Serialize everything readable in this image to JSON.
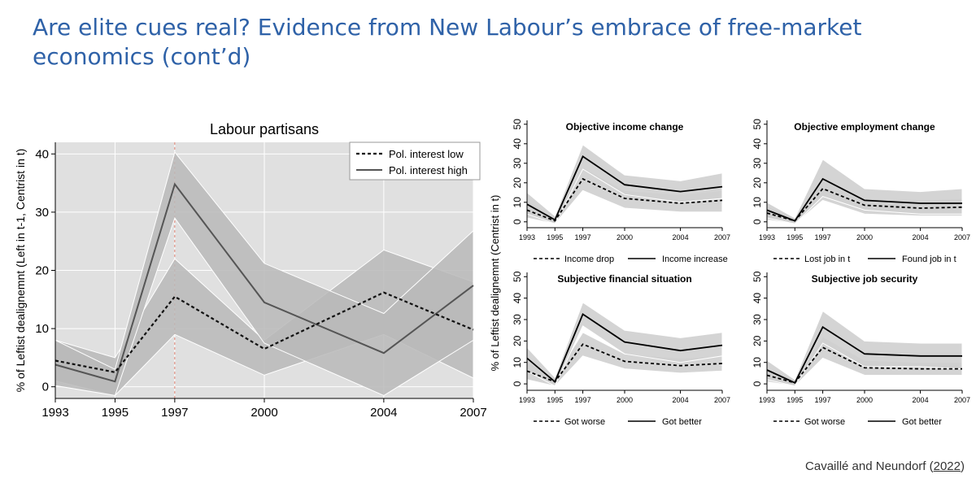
{
  "slide": {
    "title": "Are elite cues real? Evidence from New Labour’s embrace of free-market economics (cont’d)",
    "citation_prefix": "Cavaillé and Neundorf (",
    "citation_year": "2022",
    "citation_suffix": ")"
  },
  "colors": {
    "title": "#2f62a8",
    "main_plot_bg": "#e0e0e0",
    "main_band": "#b8b8b8",
    "main_high_line": "#555555",
    "small_band": "#cfcfcf",
    "vline": "#e08070"
  },
  "chart_data": [
    {
      "type": "line",
      "title": "Labour partisans",
      "ylabel": "% of Leftist dealignemnt (Left in t-1, Centrist in t)",
      "xlabel": "",
      "x": [
        1993,
        1995,
        1997,
        2000,
        2004,
        2007
      ],
      "xticks": [
        "1993",
        "1995",
        "1997",
        "2000",
        "2004",
        "2007"
      ],
      "ylim": [
        -2,
        42
      ],
      "yticks": [
        "0",
        "10",
        "20",
        "30",
        "40"
      ],
      "grid": true,
      "legend_position": "top-right",
      "vline_x": 1997,
      "series": [
        {
          "name": "Pol. interest low",
          "style": "dashed",
          "values": [
            4.5,
            2.5,
            15.5,
            6.5,
            16.2,
            9.8
          ],
          "ci_low": [
            1.0,
            -1.5,
            9.0,
            2.0,
            9.0,
            1.5
          ],
          "ci_high": [
            8.0,
            5.0,
            22.0,
            8.0,
            23.5,
            18.0
          ]
        },
        {
          "name": "Pol. interest high",
          "style": "solid",
          "values": [
            3.8,
            0.9,
            34.8,
            14.5,
            5.8,
            17.4
          ],
          "ci_low": [
            0.2,
            -1.5,
            29.0,
            7.5,
            -1.5,
            8.0
          ],
          "ci_high": [
            8.0,
            3.0,
            40.3,
            21.2,
            12.6,
            26.8
          ]
        }
      ]
    },
    {
      "type": "line",
      "title": "Objective income change",
      "ylabel": "% of Leftist dealignemnt (Centrist in t)",
      "x": [
        1993,
        1995,
        1997,
        2000,
        2004,
        2007
      ],
      "xticks": [
        "1993",
        "1995",
        "1997",
        "2000",
        "2004",
        "2007"
      ],
      "ylim": [
        -3,
        52
      ],
      "yticks": [
        "0",
        "10",
        "20",
        "30",
        "40",
        "50"
      ],
      "legend_position": "bottom",
      "series": [
        {
          "name": "Income drop",
          "style": "dashed",
          "values": [
            6,
            0.5,
            22,
            12,
            9.5,
            11
          ],
          "ci_low": [
            2,
            -1,
            16,
            7,
            5,
            5
          ],
          "ci_high": [
            11,
            2,
            28,
            16,
            14,
            16
          ]
        },
        {
          "name": "Income increase",
          "style": "solid",
          "values": [
            9,
            1,
            33.5,
            19,
            15.5,
            18
          ],
          "ci_low": [
            4,
            -1,
            27,
            14,
            10,
            12
          ],
          "ci_high": [
            15,
            3,
            39.5,
            24,
            21,
            25
          ]
        }
      ]
    },
    {
      "type": "line",
      "title": "Objective employment change",
      "ylabel": "",
      "x": [
        1993,
        1995,
        1997,
        2000,
        2004,
        2007
      ],
      "xticks": [
        "1993",
        "1995",
        "1997",
        "2000",
        "2004",
        "2007"
      ],
      "ylim": [
        -3,
        52
      ],
      "yticks": [
        "0",
        "10",
        "20",
        "30",
        "40",
        "50"
      ],
      "legend_position": "bottom",
      "series": [
        {
          "name": "Lost job in t",
          "style": "dashed",
          "values": [
            4.5,
            0.5,
            17,
            8.5,
            7,
            7.5
          ],
          "ci_low": [
            1,
            -1,
            11,
            4,
            3,
            3
          ],
          "ci_high": [
            8,
            2,
            23,
            12,
            11,
            12
          ]
        },
        {
          "name": "Found job in t",
          "style": "solid",
          "values": [
            6,
            0.5,
            22,
            11,
            9.5,
            9.5
          ],
          "ci_low": [
            2,
            -1,
            13,
            6,
            4,
            4
          ],
          "ci_high": [
            10,
            2,
            32,
            17,
            15.5,
            17
          ]
        }
      ]
    },
    {
      "type": "line",
      "title": "Subjective financial situation",
      "ylabel": "",
      "x": [
        1993,
        1995,
        1997,
        2000,
        2004,
        2007
      ],
      "xticks": [
        "1993",
        "1995",
        "1997",
        "2000",
        "2004",
        "2007"
      ],
      "ylim": [
        -3,
        52
      ],
      "yticks": [
        "0",
        "10",
        "20",
        "30",
        "40",
        "50"
      ],
      "legend_position": "bottom",
      "series": [
        {
          "name": "Got worse",
          "style": "dashed",
          "values": [
            6,
            1,
            18.5,
            10.5,
            8.5,
            9.5
          ],
          "ci_low": [
            2,
            -1,
            13,
            7,
            5,
            6
          ],
          "ci_high": [
            10,
            3,
            24,
            14,
            12,
            13
          ]
        },
        {
          "name": "Got better",
          "style": "solid",
          "values": [
            12,
            1,
            32.5,
            19.5,
            15.5,
            18
          ],
          "ci_low": [
            6,
            -1,
            27,
            14,
            10,
            13
          ],
          "ci_high": [
            17,
            3,
            38,
            25,
            21.5,
            24
          ]
        }
      ]
    },
    {
      "type": "line",
      "title": "Subjective job security",
      "ylabel": "",
      "x": [
        1993,
        1995,
        1997,
        2000,
        2004,
        2007
      ],
      "xticks": [
        "1993",
        "1995",
        "1997",
        "2000",
        "2004",
        "2007"
      ],
      "ylim": [
        -3,
        52
      ],
      "yticks": [
        "0",
        "10",
        "20",
        "30",
        "40",
        "50"
      ],
      "legend_position": "bottom",
      "series": [
        {
          "name": "Got worse",
          "style": "dashed",
          "values": [
            4,
            0.5,
            17,
            7.5,
            7,
            7
          ],
          "ci_low": [
            1,
            -1,
            12,
            4,
            4,
            4
          ],
          "ci_high": [
            7,
            2,
            22,
            11,
            10,
            10
          ]
        },
        {
          "name": "Got better",
          "style": "solid",
          "values": [
            6.5,
            0.5,
            26.5,
            14,
            13,
            13
          ],
          "ci_low": [
            2,
            -1,
            19,
            8,
            8,
            7
          ],
          "ci_high": [
            11,
            2,
            34,
            20,
            19,
            19
          ]
        }
      ]
    }
  ]
}
